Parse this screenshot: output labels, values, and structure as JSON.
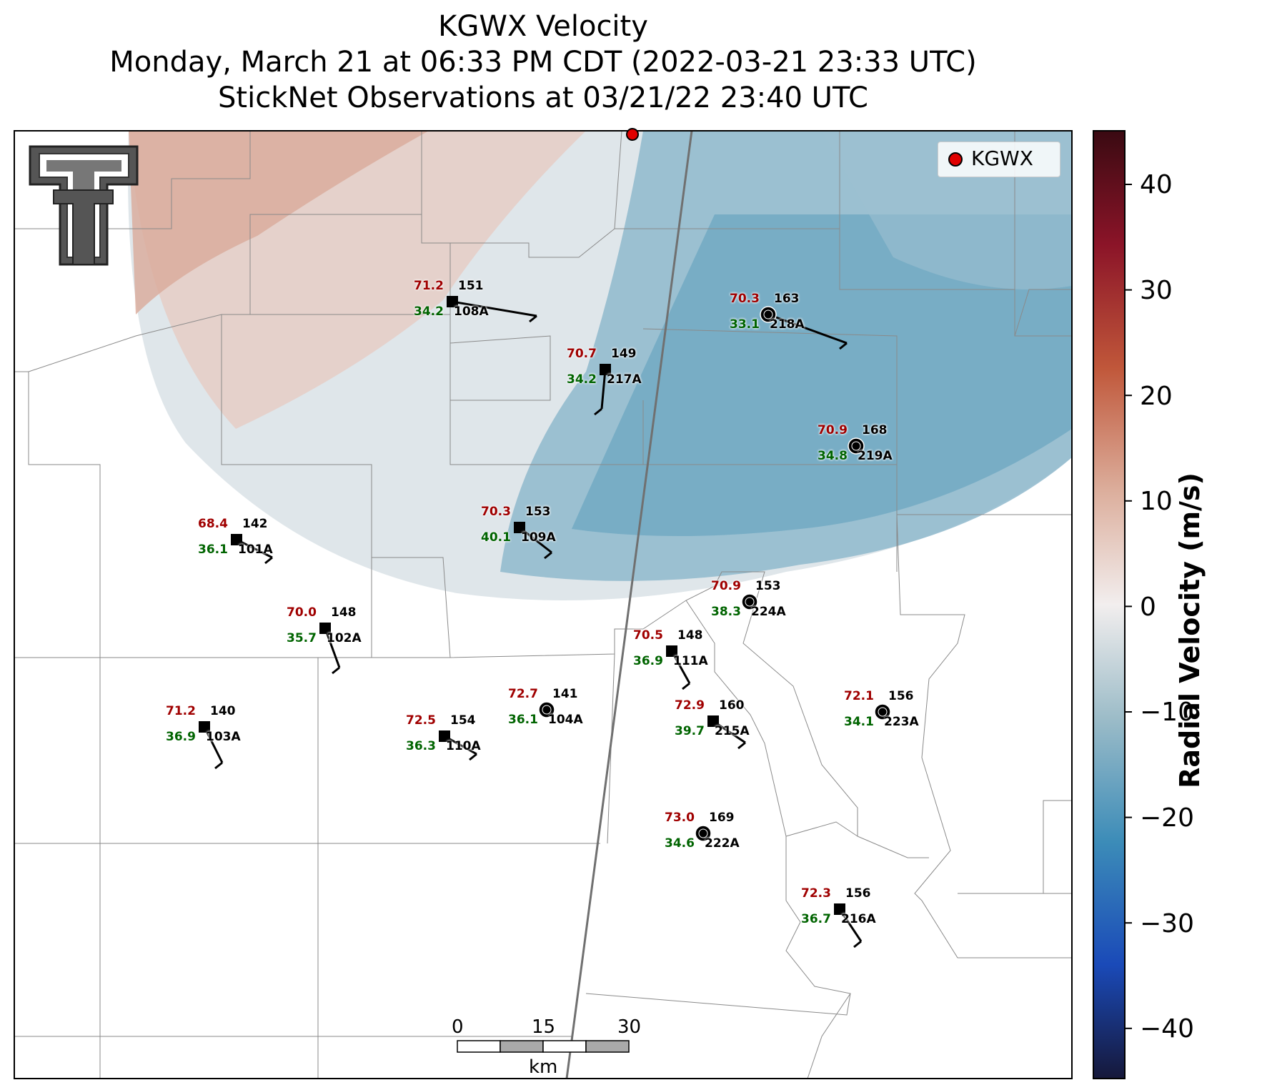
{
  "title": {
    "line1": "KGWX Velocity",
    "line2": "Monday, March 21 at 06:33 PM CDT (2022-03-21 23:33 UTC)",
    "line3": "StickNet Observations at 03/21/22 23:40 UTC"
  },
  "legend": {
    "label": "KGWX",
    "color": "#e00000"
  },
  "colorbar": {
    "label": "Radial Velocity (m/s)",
    "ticks": [
      "40",
      "30",
      "20",
      "10",
      "0",
      "−10",
      "−20",
      "−30",
      "−40"
    ],
    "range": [
      -45,
      45
    ]
  },
  "scale_bar": {
    "ticks": [
      "0",
      "15",
      "30"
    ],
    "unit": "km"
  },
  "logo": {
    "icon": "texas-tech-double-t-logo"
  },
  "stations": [
    {
      "id": "108A",
      "temp": "71.2",
      "dew": "34.2",
      "pres": "151",
      "type": "square"
    },
    {
      "id": "218A",
      "temp": "70.3",
      "dew": "33.1",
      "pres": "163",
      "type": "circle"
    },
    {
      "id": "217A",
      "temp": "70.7",
      "dew": "34.2",
      "pres": "149",
      "type": "square"
    },
    {
      "id": "219A",
      "temp": "70.9",
      "dew": "34.8",
      "pres": "168",
      "type": "circle"
    },
    {
      "id": "101A",
      "temp": "68.4",
      "dew": "36.1",
      "pres": "142",
      "type": "square"
    },
    {
      "id": "109A",
      "temp": "70.3",
      "dew": "40.1",
      "pres": "153",
      "type": "square"
    },
    {
      "id": "224A",
      "temp": "70.9",
      "dew": "38.3",
      "pres": "153",
      "type": "circle"
    },
    {
      "id": "102A",
      "temp": "70.0",
      "dew": "35.7",
      "pres": "148",
      "type": "square"
    },
    {
      "id": "111A",
      "temp": "70.5",
      "dew": "36.9",
      "pres": "148",
      "type": "square"
    },
    {
      "id": "104A",
      "temp": "72.7",
      "dew": "36.1",
      "pres": "141",
      "type": "circle"
    },
    {
      "id": "103A",
      "temp": "71.2",
      "dew": "36.9",
      "pres": "140",
      "type": "square"
    },
    {
      "id": "110A",
      "temp": "72.5",
      "dew": "36.3",
      "pres": "154",
      "type": "square"
    },
    {
      "id": "215A",
      "temp": "72.9",
      "dew": "39.7",
      "pres": "160",
      "type": "square"
    },
    {
      "id": "223A",
      "temp": "72.1",
      "dew": "34.1",
      "pres": "156",
      "type": "circle"
    },
    {
      "id": "222A",
      "temp": "73.0",
      "dew": "34.6",
      "pres": "169",
      "type": "circle"
    },
    {
      "id": "216A",
      "temp": "72.3",
      "dew": "36.7",
      "pres": "156",
      "type": "square"
    }
  ]
}
